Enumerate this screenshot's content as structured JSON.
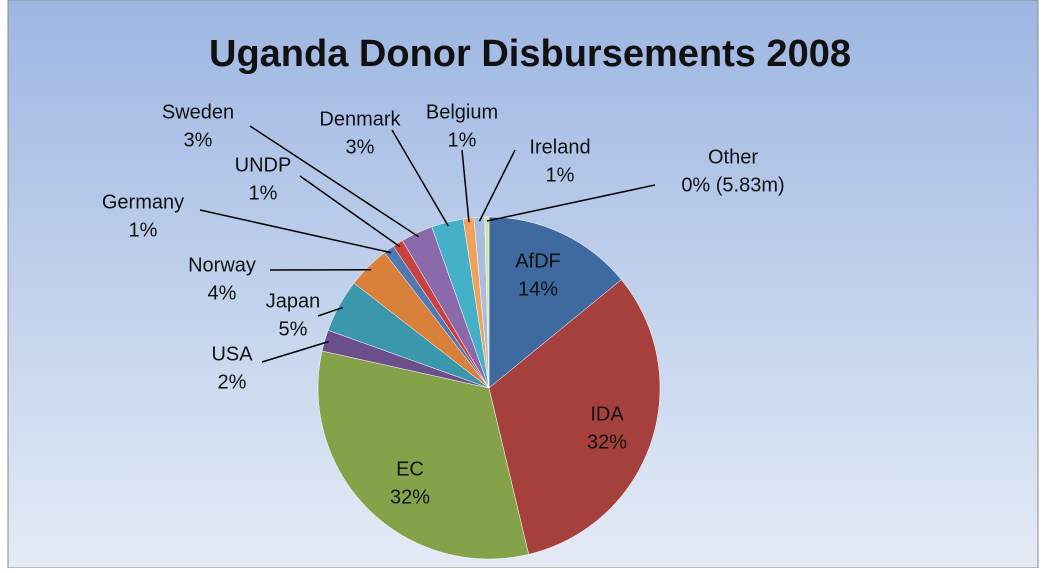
{
  "chart_data": {
    "type": "pie",
    "title": "Uganda Donor Disbursements 2008",
    "categories": [
      "AfDF",
      "IDA",
      "EC",
      "USA",
      "Japan",
      "Norway",
      "Germany",
      "UNDP",
      "Sweden",
      "Denmark",
      "Belgium",
      "Ireland",
      "Other"
    ],
    "values": [
      14,
      32,
      32,
      2,
      5,
      4,
      1,
      1,
      3,
      3,
      1,
      1,
      0.4
    ],
    "value_labels": [
      "14%",
      "32%",
      "32%",
      "2%",
      "5%",
      "4%",
      "1%",
      "1%",
      "3%",
      "3%",
      "1%",
      "1%",
      "0% (5.83m)"
    ],
    "colors": [
      "#3e6aa0",
      "#a6403d",
      "#85a24a",
      "#6b4f8b",
      "#3b97ab",
      "#d9803a",
      "#4f79b0",
      "#c84340",
      "#8a6aab",
      "#45b1c8",
      "#f2a15c",
      "#a7bde0",
      "#d2e2a3"
    ]
  }
}
